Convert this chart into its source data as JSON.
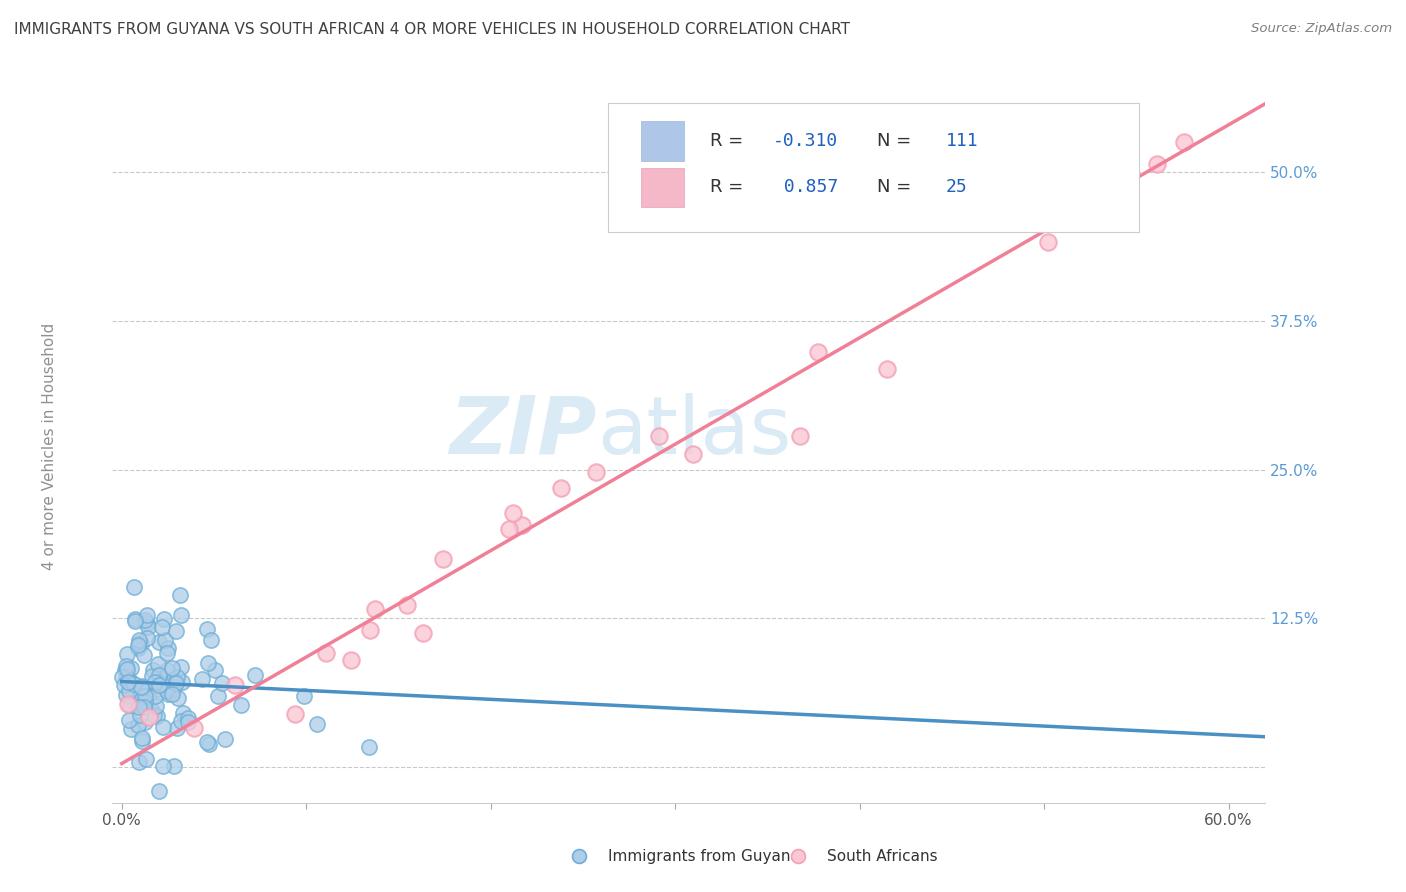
{
  "title": "IMMIGRANTS FROM GUYANA VS SOUTH AFRICAN 4 OR MORE VEHICLES IN HOUSEHOLD CORRELATION CHART",
  "source": "Source: ZipAtlas.com",
  "ylabel": "4 or more Vehicles in Household",
  "xlim": [
    -0.005,
    0.62
  ],
  "ylim": [
    -0.03,
    0.57
  ],
  "xticks": [
    0.0,
    0.1,
    0.2,
    0.3,
    0.4,
    0.5,
    0.6
  ],
  "xtick_labels": [
    "0.0%",
    "",
    "",
    "",
    "",
    "",
    "60.0%"
  ],
  "yticks_right": [
    0.0,
    0.125,
    0.25,
    0.375,
    0.5
  ],
  "ytick_labels_right": [
    "",
    "12.5%",
    "25.0%",
    "37.5%",
    "50.0%"
  ],
  "legend_entries": [
    {
      "label_R": "R = -0.310",
      "label_N": "N = 111",
      "color": "#aec6e8"
    },
    {
      "label_R": "R =  0.857",
      "label_N": "N = 25",
      "color": "#f4b8c8"
    }
  ],
  "legend_labels_bottom": [
    "Immigrants from Guyana",
    "South Africans"
  ],
  "guyana_color": "#6baed6",
  "guyana_marker_face": "#aecde8",
  "south_african_color": "#f4a0b5",
  "south_african_marker_face": "#f9c8d5",
  "guyana_line_color": "#4a90c4",
  "south_african_line_color": "#f08098",
  "background_color": "#ffffff",
  "grid_color": "#bbbbbb",
  "title_color": "#404040",
  "source_color": "#808080",
  "axis_label_color": "#909090",
  "tick_value_color": "#5b9bd5",
  "tick_label_color_bottom": "#555555",
  "watermark_color": "#d5e8f5",
  "guyana_line_slope": -0.075,
  "guyana_line_intercept": 0.072,
  "sa_line_slope": 0.895,
  "sa_line_intercept": 0.003
}
